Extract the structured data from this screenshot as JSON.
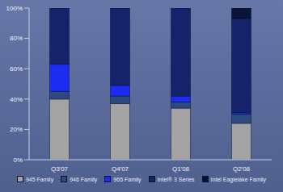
{
  "chart_data": {
    "type": "bar",
    "stacked": true,
    "grid": false,
    "legend": "bottom",
    "categories": [
      "Q3'07",
      "Q4'07",
      "Q1'08",
      "Q2'08"
    ],
    "series": [
      {
        "name": "945 Family",
        "color": "#a3a3a3",
        "values": [
          40,
          37,
          34,
          24
        ]
      },
      {
        "name": "946 Family",
        "color": "#2c4a7c",
        "values": [
          5,
          5,
          4,
          6
        ]
      },
      {
        "name": "965 Family",
        "color": "#1c2cf0",
        "values": [
          18,
          7,
          4,
          1
        ]
      },
      {
        "name": "Intel® 3 Series",
        "color": "#15236a",
        "values": [
          37,
          51,
          58,
          62
        ]
      },
      {
        "name": "Intel Eaglelake Family",
        "color": "#0a1238",
        "values": [
          0,
          0,
          0,
          7
        ]
      }
    ],
    "ylim": [
      0,
      100
    ],
    "yticks": [
      {
        "value": 0,
        "label": "0%"
      },
      {
        "value": 20,
        "label": "20%"
      },
      {
        "value": 40,
        "label": "40%"
      },
      {
        "value": 60,
        "label": "60%"
      },
      {
        "value": 80,
        "label": "80%"
      },
      {
        "value": 100,
        "label": "100%"
      }
    ]
  }
}
